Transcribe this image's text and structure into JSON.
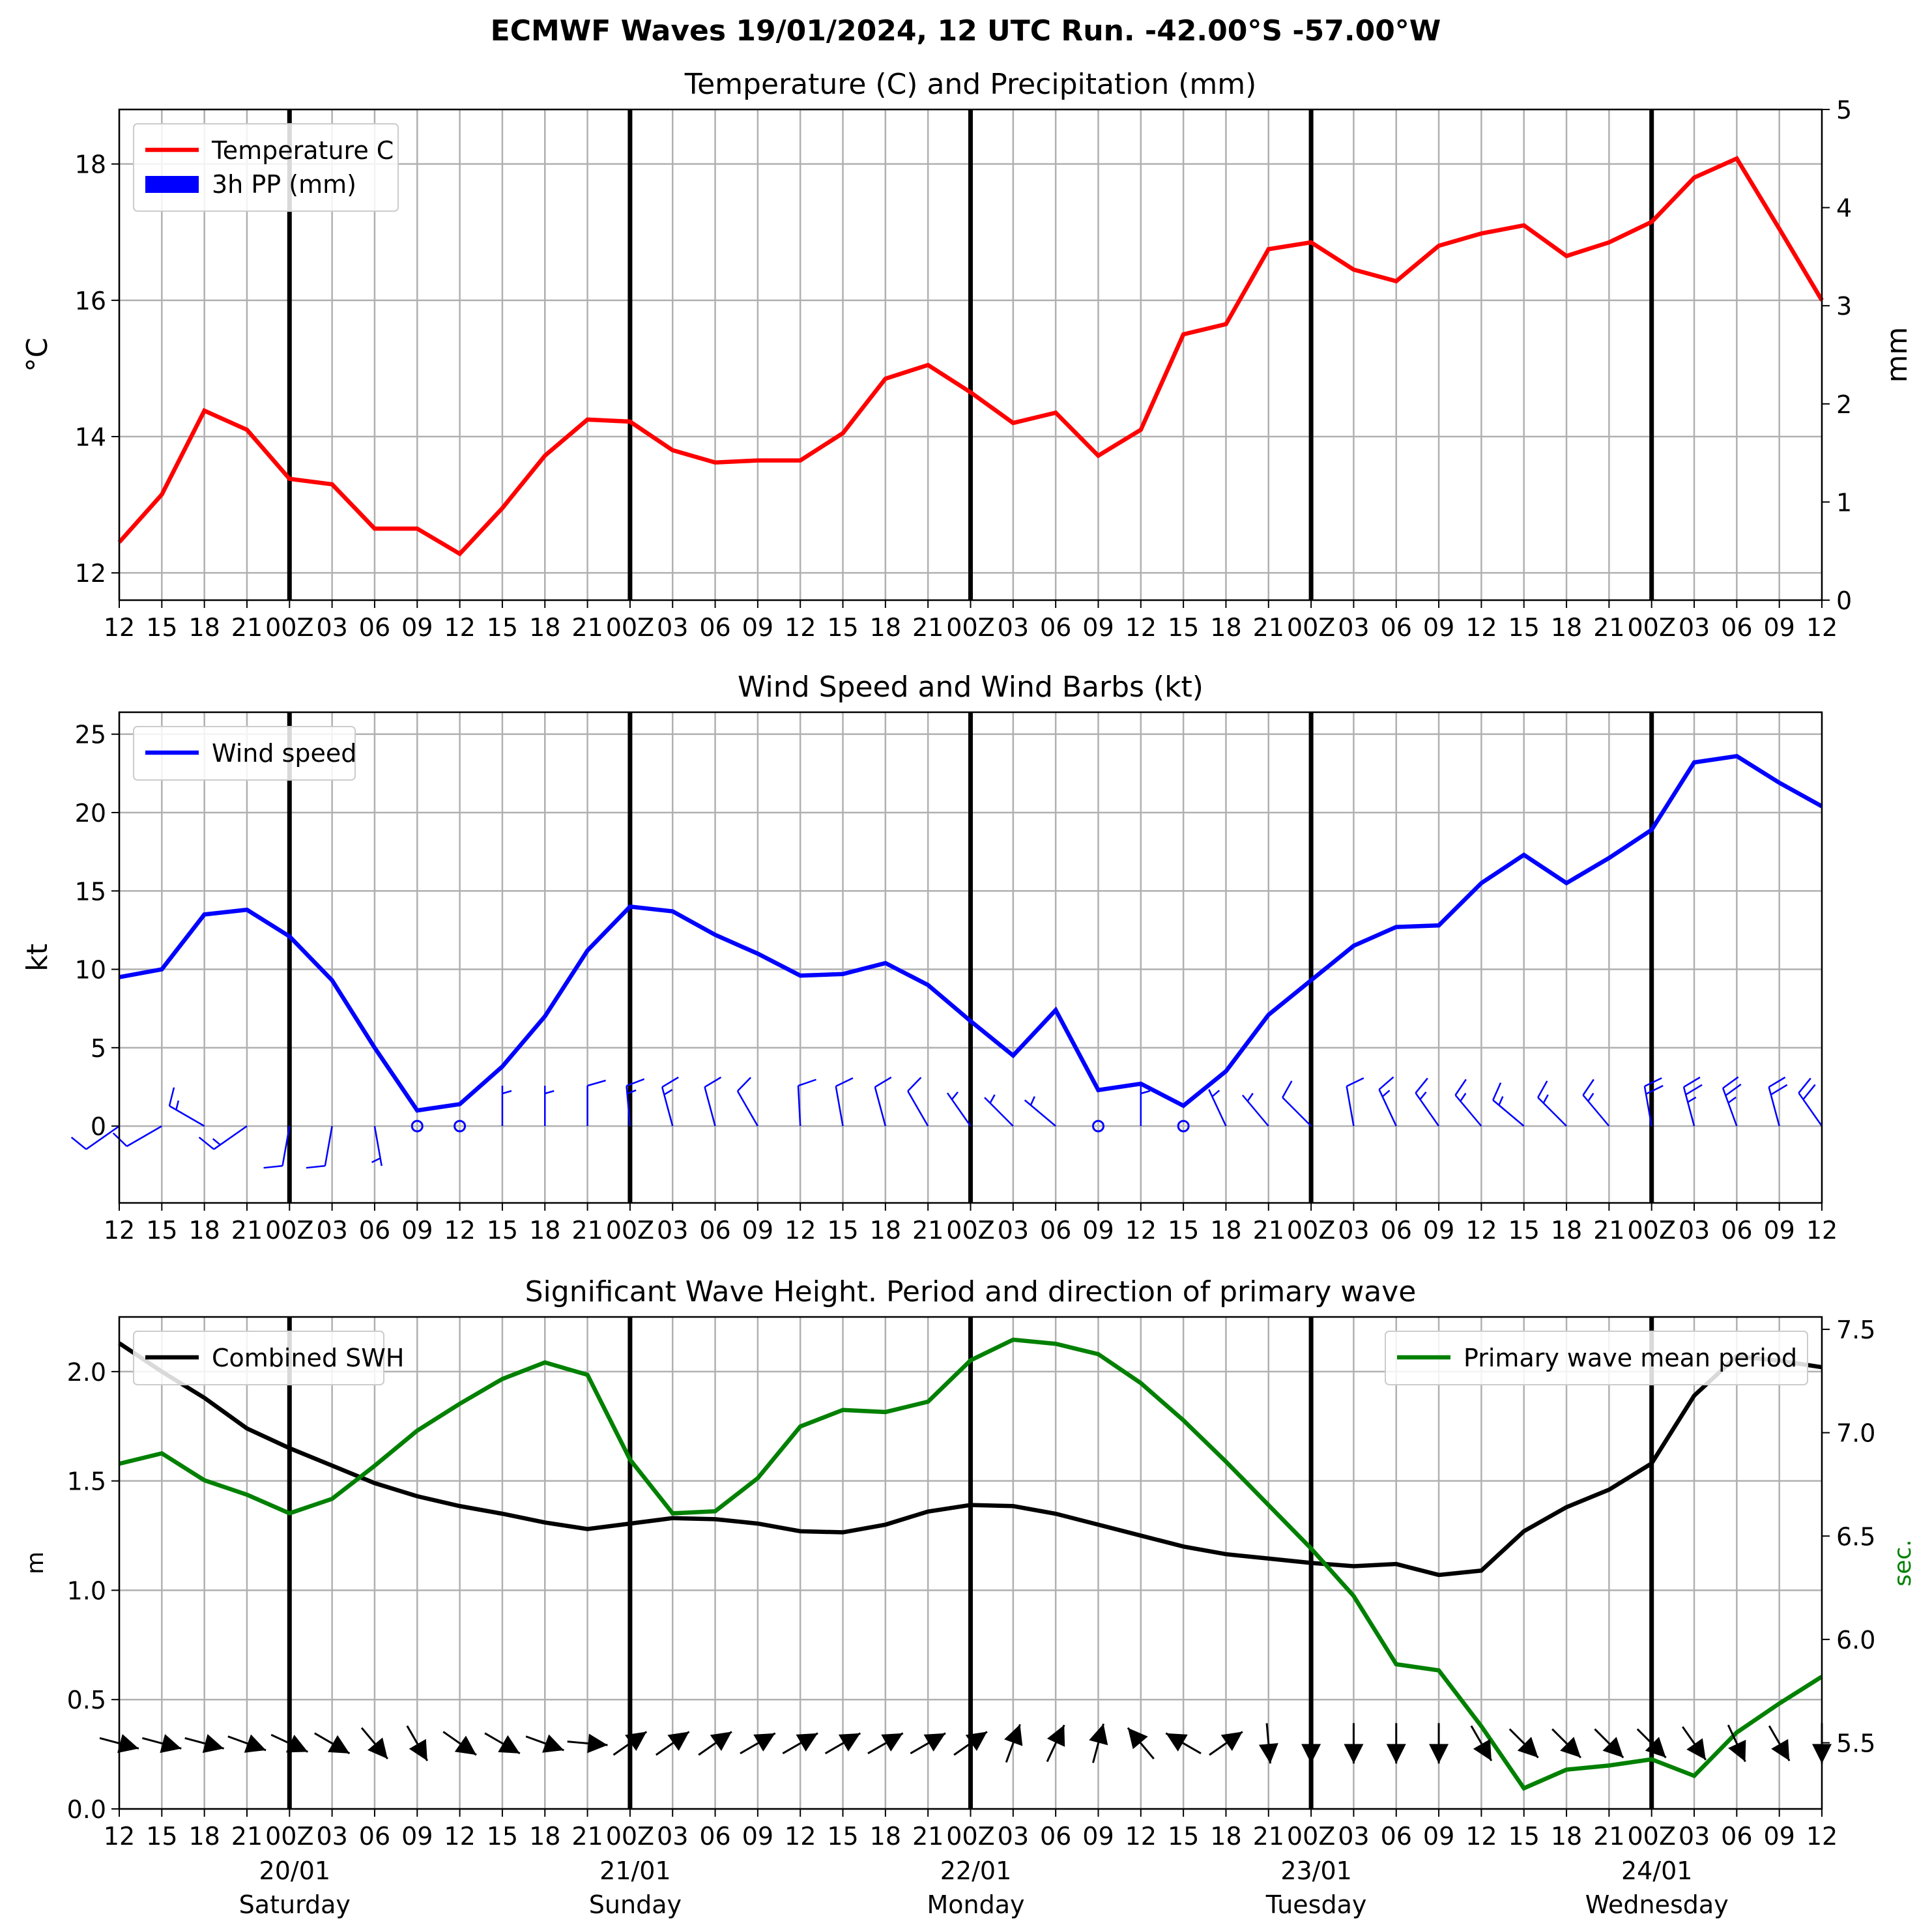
{
  "figure_title": "ECMWF Waves 19/01/2024, 12 UTC Run. -42.00°S -57.00°W",
  "colors": {
    "temperature": "#ff0000",
    "precipitation": "#0000ff",
    "wind": "#0000ff",
    "swh": "#000000",
    "period": "#008000",
    "grid": "#b0b0b0",
    "day_line": "#000000"
  },
  "time_axis": {
    "tick_labels": [
      "12",
      "15",
      "18",
      "21",
      "00Z",
      "03",
      "06",
      "09",
      "12",
      "15",
      "18",
      "21",
      "00Z",
      "03",
      "06",
      "09",
      "12",
      "15",
      "18",
      "21",
      "00Z",
      "03",
      "06",
      "09",
      "12",
      "15",
      "18",
      "21",
      "00Z",
      "03",
      "06",
      "09",
      "12",
      "15",
      "18",
      "21",
      "00Z",
      "03",
      "06",
      "09",
      "12"
    ],
    "day_labels": [
      {
        "date": "20/01",
        "weekday": "Saturday",
        "tick_index": 4
      },
      {
        "date": "21/01",
        "weekday": "Sunday",
        "tick_index": 12
      },
      {
        "date": "22/01",
        "weekday": "Monday",
        "tick_index": 20
      },
      {
        "date": "23/01",
        "weekday": "Tuesday",
        "tick_index": 28
      },
      {
        "date": "24/01",
        "weekday": "Wednesday",
        "tick_index": 36
      }
    ],
    "day_boundary_indices": [
      4,
      12,
      20,
      28,
      36
    ]
  },
  "chart_data": [
    {
      "type": "line",
      "title": "Temperature (C) and Precipitation (mm)",
      "ylabel": "°C",
      "ylabel_right": "mm",
      "ylim": [
        11.6,
        18.8
      ],
      "yticks": [
        12,
        14,
        16,
        18
      ],
      "ylim_right": [
        0,
        5
      ],
      "yticks_right": [
        0,
        1,
        2,
        3,
        4,
        5
      ],
      "legend_position": "upper left",
      "grid": true,
      "series": [
        {
          "name": "Temperature C",
          "axis": "left",
          "values": [
            12.45,
            13.15,
            14.38,
            14.1,
            13.38,
            13.3,
            12.65,
            12.65,
            12.28,
            12.95,
            13.72,
            14.25,
            14.22,
            13.8,
            13.62,
            13.65,
            13.65,
            14.05,
            14.85,
            15.05,
            14.65,
            14.2,
            14.35,
            13.72,
            14.1,
            15.5,
            15.65,
            16.75,
            16.85,
            16.45,
            16.28,
            16.8,
            16.98,
            17.1,
            16.65,
            16.85,
            17.15,
            17.8,
            18.08,
            17.05,
            16.0
          ]
        },
        {
          "name": "3h PP (mm)",
          "axis": "right",
          "type": "bar",
          "values": [
            0,
            0,
            0,
            0,
            0,
            0,
            0,
            0,
            0,
            0,
            0,
            0,
            0,
            0,
            0,
            0,
            0,
            0,
            0,
            0,
            0,
            0,
            0,
            0,
            0,
            0,
            0,
            0,
            0,
            0,
            0,
            0,
            0,
            0,
            0,
            0,
            0,
            0,
            0,
            0,
            0
          ]
        }
      ]
    },
    {
      "type": "line",
      "title": "Wind Speed and Wind Barbs (kt)",
      "ylabel": "kt",
      "ylim": [
        -4.9,
        26.4
      ],
      "yticks": [
        0,
        5,
        10,
        15,
        20,
        25
      ],
      "legend_position": "upper left",
      "grid": true,
      "series": [
        {
          "name": "Wind speed",
          "values": [
            9.5,
            10.0,
            13.5,
            13.8,
            12.1,
            9.3,
            5.0,
            1.0,
            1.4,
            3.8,
            7.0,
            11.2,
            14.0,
            13.7,
            12.2,
            11.0,
            9.6,
            9.7,
            10.4,
            9.0,
            6.7,
            4.5,
            7.4,
            2.3,
            2.7,
            1.3,
            3.5,
            7.1,
            9.3,
            11.5,
            12.7,
            12.8,
            15.5,
            17.3,
            15.5,
            17.1,
            18.9,
            23.2,
            23.6,
            21.9,
            20.4
          ]
        }
      ],
      "wind_barbs": {
        "baseline_value": 0,
        "speeds_kt": [
          9.5,
          10.0,
          13.5,
          13.8,
          12.1,
          9.3,
          5.0,
          1.0,
          1.4,
          3.8,
          7.0,
          11.2,
          14.0,
          13.7,
          12.2,
          11.0,
          9.6,
          9.7,
          10.4,
          9.0,
          6.7,
          4.5,
          7.4,
          2.3,
          2.7,
          1.3,
          3.5,
          7.1,
          9.3,
          11.5,
          12.7,
          12.8,
          15.5,
          17.3,
          15.5,
          17.1,
          18.9,
          23.2,
          23.6,
          21.9,
          20.4
        ],
        "from_direction_deg": [
          235,
          240,
          300,
          235,
          190,
          190,
          170,
          0,
          0,
          0,
          0,
          0,
          355,
          345,
          345,
          330,
          357,
          350,
          345,
          330,
          325,
          315,
          310,
          0,
          0,
          0,
          335,
          320,
          315,
          350,
          335,
          325,
          320,
          310,
          315,
          320,
          350,
          345,
          340,
          345,
          325
        ]
      }
    },
    {
      "type": "line",
      "title": "Significant Wave Height. Period and direction of primary wave",
      "ylabel": "m",
      "ylabel_right": "sec.",
      "ylim": [
        0.0,
        2.25
      ],
      "yticks": [
        0.0,
        0.5,
        1.0,
        1.5,
        2.0
      ],
      "ylim_right": [
        5.18,
        7.56
      ],
      "yticks_right": [
        5.5,
        6.0,
        6.5,
        7.0,
        7.5
      ],
      "grid": true,
      "legend_positions": {
        "Combined SWH": "upper left",
        "Primary wave mean period": "upper right"
      },
      "series": [
        {
          "name": "Combined SWH",
          "axis": "left",
          "values": [
            2.13,
            2.0,
            1.88,
            1.74,
            1.65,
            1.57,
            1.49,
            1.43,
            1.385,
            1.35,
            1.31,
            1.28,
            1.305,
            1.33,
            1.325,
            1.305,
            1.27,
            1.265,
            1.3,
            1.36,
            1.39,
            1.385,
            1.35,
            1.3,
            1.25,
            1.2,
            1.165,
            1.145,
            1.125,
            1.11,
            1.12,
            1.07,
            1.09,
            1.27,
            1.38,
            1.46,
            1.58,
            1.89,
            2.07,
            2.05,
            2.02
          ]
        },
        {
          "name": "Primary wave mean period",
          "axis": "right",
          "values": [
            6.85,
            6.9,
            6.77,
            6.7,
            6.61,
            6.68,
            6.84,
            7.01,
            7.14,
            7.26,
            7.34,
            7.28,
            6.87,
            6.61,
            6.62,
            6.78,
            7.03,
            7.11,
            7.1,
            7.15,
            7.35,
            7.45,
            7.43,
            7.38,
            7.24,
            7.06,
            6.86,
            6.65,
            6.44,
            6.21,
            5.88,
            5.85,
            5.58,
            5.28,
            5.37,
            5.39,
            5.42,
            5.34,
            5.55,
            5.69,
            5.82
          ]
        }
      ],
      "wave_direction": {
        "baseline_m": 0.3,
        "from_direction_deg": [
          285,
          285,
          285,
          290,
          295,
          300,
          320,
          330,
          305,
          300,
          290,
          275,
          235,
          235,
          235,
          240,
          240,
          240,
          240,
          240,
          235,
          200,
          205,
          195,
          140,
          120,
          235,
          355,
          0,
          0,
          0,
          0,
          330,
          315,
          315,
          315,
          315,
          325,
          335,
          330,
          0
        ]
      }
    }
  ]
}
